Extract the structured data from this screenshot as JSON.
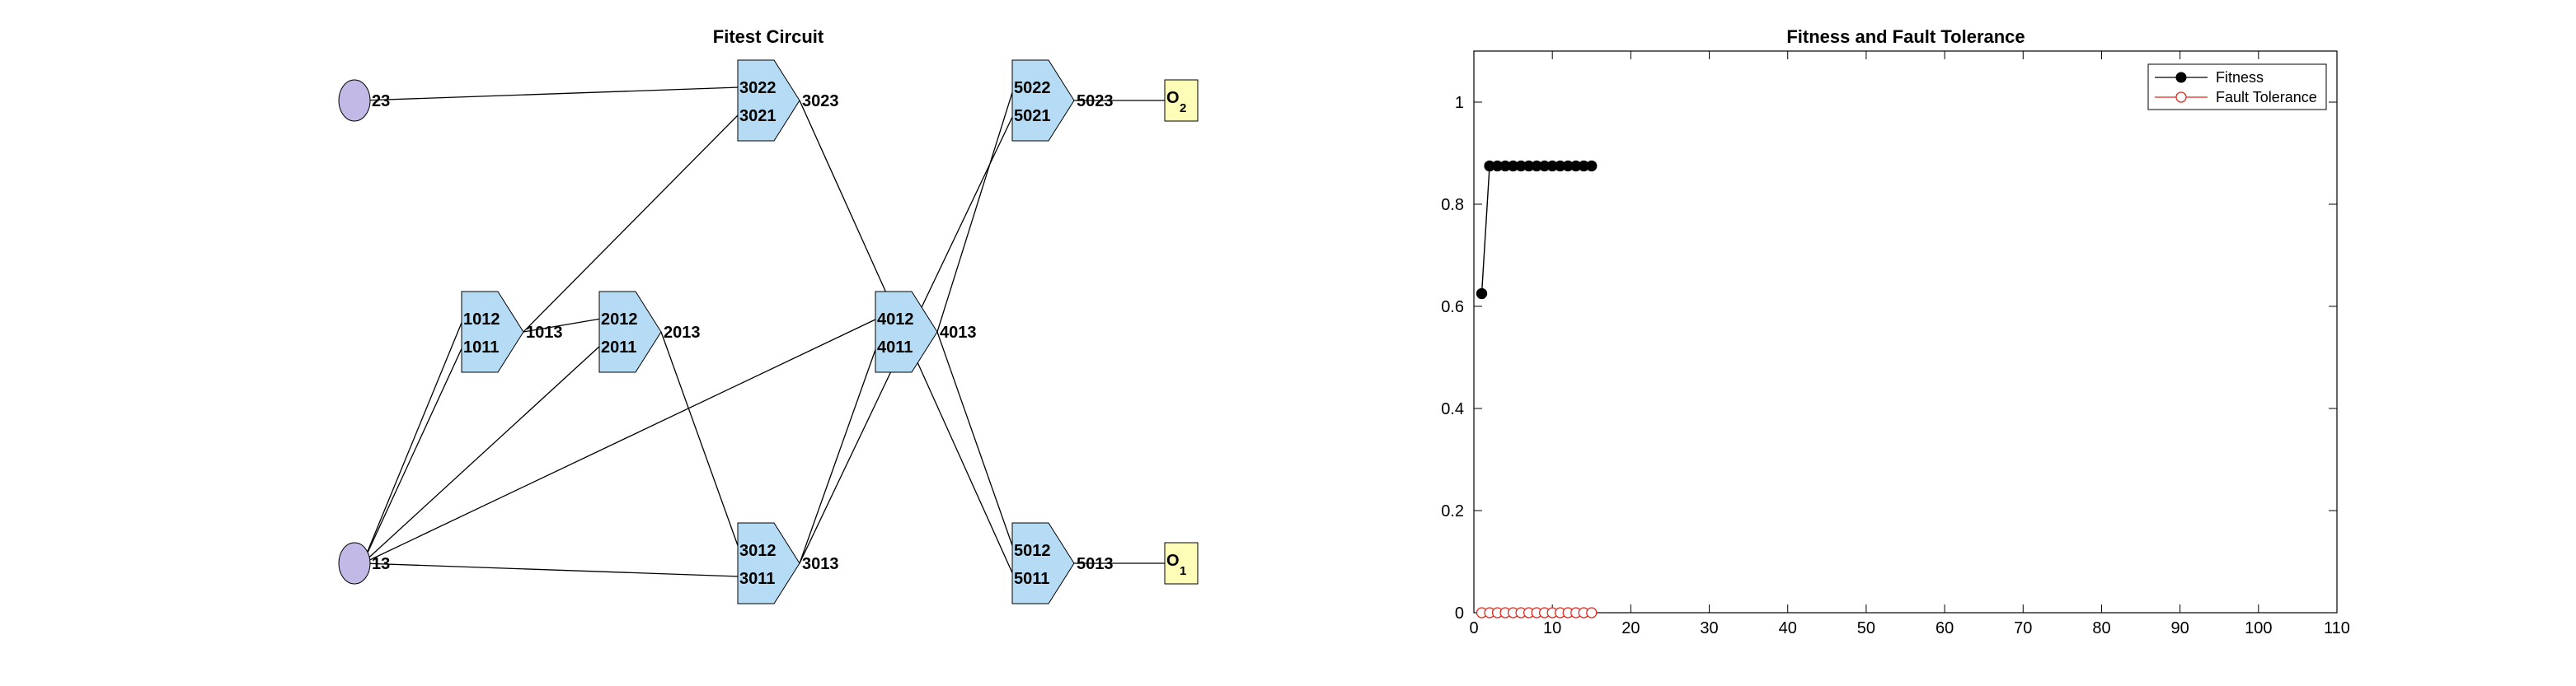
{
  "chart_data": [
    {
      "type": "diagram",
      "title": "Fitest Circuit",
      "inputs": [
        {
          "id": "in23",
          "label": "23"
        },
        {
          "id": "in13",
          "label": "13"
        }
      ],
      "gates": [
        {
          "id": "g1013",
          "in_top": "1012",
          "in_bottom": "1011",
          "out": "1013"
        },
        {
          "id": "g2013",
          "in_top": "2012",
          "in_bottom": "2011",
          "out": "2013"
        },
        {
          "id": "g3023",
          "in_top": "3022",
          "in_bottom": "3021",
          "out": "3023"
        },
        {
          "id": "g3013",
          "in_top": "3012",
          "in_bottom": "3011",
          "out": "3013"
        },
        {
          "id": "g4013",
          "in_top": "4012",
          "in_bottom": "4011",
          "out": "4013"
        },
        {
          "id": "g5023",
          "in_top": "5022",
          "in_bottom": "5021",
          "out": "5023"
        },
        {
          "id": "g5013",
          "in_top": "5012",
          "in_bottom": "5011",
          "out": "5013"
        }
      ],
      "outputs": [
        {
          "id": "o2",
          "label": "O",
          "sub": "2"
        },
        {
          "id": "o1",
          "label": "O",
          "sub": "1"
        }
      ],
      "connections": [
        [
          "in23",
          "g3023.top"
        ],
        [
          "in13",
          "g1013.top"
        ],
        [
          "in13",
          "g1013.bottom"
        ],
        [
          "in13",
          "g2013.bottom"
        ],
        [
          "in13",
          "g4013.top"
        ],
        [
          "in13",
          "g3013.bottom"
        ],
        [
          "g1013",
          "g2013.top"
        ],
        [
          "g1013",
          "g3023.bottom"
        ],
        [
          "g2013",
          "g3013.top"
        ],
        [
          "g3013",
          "g4013.bottom"
        ],
        [
          "g3013",
          "g5023.bottom"
        ],
        [
          "g3023",
          "g5013.bottom"
        ],
        [
          "g4013",
          "g5023.top"
        ],
        [
          "g4013",
          "g5013.top"
        ],
        [
          "g5023",
          "o2"
        ],
        [
          "g5013",
          "o1"
        ]
      ]
    },
    {
      "type": "line",
      "title": "Fitness and Fault Tolerance",
      "xlabel": "",
      "ylabel": "",
      "xlim": [
        0,
        110
      ],
      "ylim": [
        0,
        1.1
      ],
      "xticks": [
        0,
        10,
        20,
        30,
        40,
        50,
        60,
        70,
        80,
        90,
        100,
        110
      ],
      "yticks": [
        0,
        0.2,
        0.4,
        0.6,
        0.8,
        1
      ],
      "grid": false,
      "legend_position": "top-right",
      "series": [
        {
          "name": "Fitness",
          "color": "#000000",
          "marker": "filled-circle",
          "x": [
            1,
            2,
            3,
            4,
            5,
            6,
            7,
            8,
            9,
            10,
            11,
            12,
            13,
            14,
            15
          ],
          "values": [
            0.625,
            0.875,
            0.875,
            0.875,
            0.875,
            0.875,
            0.875,
            0.875,
            0.875,
            0.875,
            0.875,
            0.875,
            0.875,
            0.875,
            0.875
          ]
        },
        {
          "name": "Fault Tolerance",
          "color": "#e8281e",
          "marker": "open-circle",
          "x": [
            1,
            2,
            3,
            4,
            5,
            6,
            7,
            8,
            9,
            10,
            11,
            12,
            13,
            14,
            15
          ],
          "values": [
            0,
            0,
            0,
            0,
            0,
            0,
            0,
            0,
            0,
            0,
            0,
            0,
            0,
            0,
            0
          ]
        }
      ]
    }
  ]
}
